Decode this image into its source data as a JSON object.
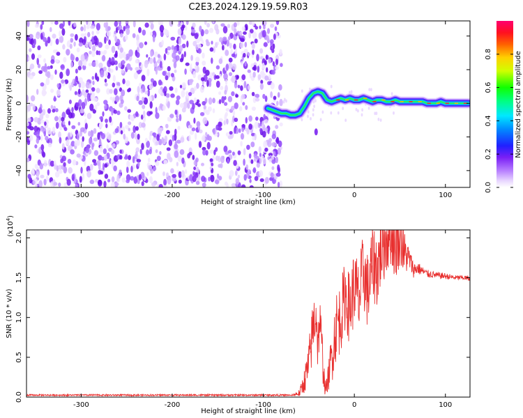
{
  "page": {
    "title": "C2E3.2024.129.19.59.R03"
  },
  "chart_data": [
    {
      "type": "heatmap",
      "title": "C2E3.2024.129.19.59.R03",
      "xlabel": "Height of straight line (km)",
      "ylabel": "Frequency (Hz)",
      "xlim": [
        -360,
        127
      ],
      "ylim": [
        -50,
        49
      ],
      "xticks": [
        -300,
        -200,
        -100,
        0,
        100
      ],
      "yticks": [
        -40,
        -20,
        0,
        20,
        40
      ],
      "noise_region_x": [
        -360,
        -80
      ],
      "signal_trace": {
        "x": [
          -95,
          -90,
          -85,
          -80,
          -75,
          -70,
          -65,
          -60,
          -55,
          -50,
          -45,
          -40,
          -35,
          -30,
          -25,
          -20,
          -15,
          -10,
          -5,
          0,
          5,
          10,
          15,
          20,
          25,
          30,
          35,
          40,
          45,
          50,
          55,
          60,
          65,
          70,
          75,
          80,
          85,
          90,
          95,
          100,
          105,
          110,
          115,
          120,
          125
        ],
        "y": [
          -3,
          -4,
          -5,
          -6,
          -6,
          -7,
          -7,
          -6,
          -2,
          3,
          6,
          7,
          6,
          2,
          1,
          2,
          3,
          2,
          3,
          2,
          2,
          3,
          2,
          1,
          2,
          2,
          1,
          1,
          2,
          1,
          1,
          1,
          1,
          1,
          1,
          0,
          0,
          0,
          1,
          0,
          0,
          0,
          0,
          0,
          0
        ]
      },
      "colorbar": {
        "label": "Normalized spectral amplitude",
        "ticks": [
          "0.0",
          "0.2",
          "0.4",
          "0.6",
          "0.8"
        ],
        "range": [
          0,
          1
        ]
      }
    },
    {
      "type": "line",
      "xlabel": "Height of straight line (km)",
      "ylabel": "SNR (10 * v/v)",
      "y_multiplier_label": "(x10",
      "y_multiplier_exponent": "4",
      "y_multiplier_close": ")",
      "xlim": [
        -360,
        127
      ],
      "ylim": [
        0,
        2.1
      ],
      "xticks": [
        -300,
        -200,
        -100,
        0,
        100
      ],
      "yticks": [
        "0.0",
        "0.5",
        "1.0",
        "1.5",
        "2.0"
      ],
      "series": [
        {
          "color": "#e8302f",
          "x": [
            -360,
            -300,
            -200,
            -100,
            -70,
            -60,
            -55,
            -50,
            -45,
            -42,
            -40,
            -38,
            -35,
            -32,
            -30,
            -25,
            -20,
            -15,
            -10,
            -5,
            0,
            5,
            10,
            15,
            20,
            25,
            30,
            35,
            40,
            45,
            50,
            55,
            60,
            65,
            70,
            75,
            80,
            90,
            100,
            110,
            120,
            127
          ],
          "y": [
            0.02,
            0.02,
            0.02,
            0.02,
            0.02,
            0.05,
            0.2,
            0.4,
            0.9,
            1.1,
            0.6,
            1.0,
            0.5,
            0.1,
            0.15,
            0.5,
            0.9,
            1.0,
            1.3,
            1.1,
            1.4,
            1.2,
            1.6,
            1.3,
            1.7,
            1.6,
            1.9,
            2.0,
            2.1,
            1.9,
            2.05,
            1.8,
            1.75,
            1.6,
            1.62,
            1.58,
            1.55,
            1.53,
            1.52,
            1.5,
            1.5,
            1.49
          ],
          "amp": [
            0,
            0,
            0,
            0,
            0,
            0.05,
            0.15,
            0.3,
            0.4,
            0.4,
            0.3,
            0.3,
            0.3,
            0.1,
            0.1,
            0.35,
            0.45,
            0.45,
            0.45,
            0.45,
            0.5,
            0.5,
            0.5,
            0.5,
            0.5,
            0.5,
            0.5,
            0.5,
            0.45,
            0.45,
            0.4,
            0.3,
            0.15,
            0.1,
            0.08,
            0.06,
            0.05,
            0.04,
            0.04,
            0.03,
            0.03,
            0.03
          ]
        }
      ]
    }
  ]
}
